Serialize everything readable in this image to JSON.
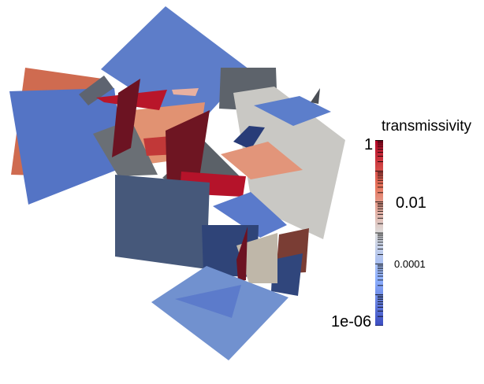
{
  "legend": {
    "title": "transmissivity",
    "ticks": [
      {
        "label": "1",
        "value": 1
      },
      {
        "label": "0.01",
        "value": 0.01
      },
      {
        "label": "0.0001",
        "value": 0.0001
      },
      {
        "label": "1e-06",
        "value": 1e-06
      }
    ],
    "scale": "log",
    "range": [
      1e-06,
      1
    ],
    "colormap": [
      "#3b4cc0",
      "#dddddd",
      "#b40426"
    ]
  },
  "colors": {
    "blue": "#5b79c6",
    "light_blue": "#7090cf",
    "dark_slate": "#46587a",
    "gray": "#5a6169",
    "light_gray": "#c9c8c4",
    "salmon": "#e08f70",
    "red": "#b51528",
    "dark_red": "#6b1220"
  }
}
